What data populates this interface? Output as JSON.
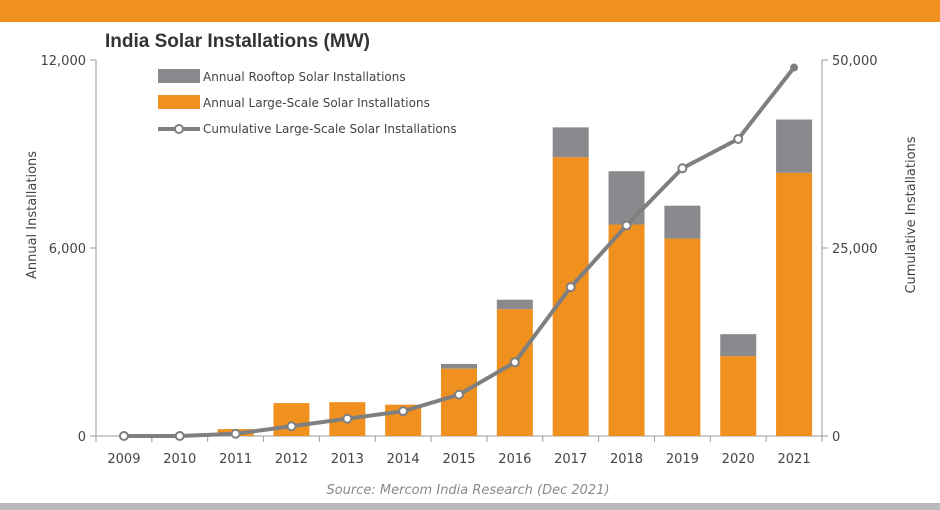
{
  "colors": {
    "large_scale": "#f0901f",
    "rooftop": "#8a8a8e",
    "cumulative": "#7f7f7f",
    "band_top": "#f0901f",
    "band_bottom": "#b9b9b9"
  },
  "chart_data": {
    "type": "bar",
    "title": "India Solar Installations (MW)",
    "source": "Source: Mercom India Research (Dec 2021)",
    "stacked": true,
    "categories": [
      "2009",
      "2010",
      "2011",
      "2012",
      "2013",
      "2014",
      "2015",
      "2016",
      "2017",
      "2018",
      "2019",
      "2020",
      "2021"
    ],
    "series": [
      {
        "name": "Annual Rooftop Solar Installations",
        "kind": "bar",
        "axis": "left",
        "values": [
          0,
          0,
          0,
          0,
          0,
          0,
          150,
          300,
          950,
          1700,
          1050,
          700,
          1700
        ]
      },
      {
        "name": "Annual Large-Scale Solar Installations",
        "kind": "bar",
        "axis": "left",
        "values": [
          0,
          0,
          220,
          1050,
          1080,
          1000,
          2150,
          4050,
          8900,
          6750,
          6300,
          2550,
          8400
        ]
      },
      {
        "name": "Cumulative Large-Scale Solar Installations",
        "kind": "line",
        "axis": "right",
        "values": [
          0,
          0,
          300,
          1300,
          2300,
          3300,
          5500,
          9800,
          19800,
          28000,
          35600,
          39500,
          49000
        ]
      }
    ],
    "y_left": {
      "label": "Annual Installations",
      "ylim": [
        0,
        12000
      ],
      "ticks": [
        0,
        6000,
        12000
      ],
      "tick_labels": [
        "0",
        "6,000",
        "12,000"
      ]
    },
    "y_right": {
      "label": "Cumulative Installations",
      "ylim": [
        0,
        50000
      ],
      "ticks": [
        0,
        25000,
        50000
      ],
      "tick_labels": [
        "0",
        "25,000",
        "50,000"
      ]
    },
    "grid": false,
    "legend": {
      "placement": "top-left-inside"
    }
  }
}
